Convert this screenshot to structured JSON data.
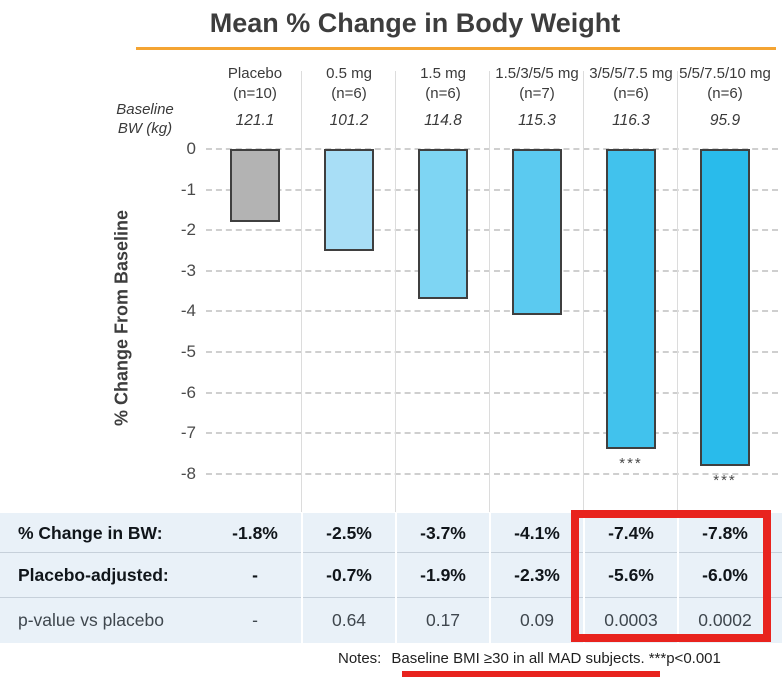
{
  "title": "Mean % Change in Body Weight",
  "accent_colors": {
    "title_rule_orange": "#F4A432",
    "highlight_red": "#E8231E",
    "table_background": "#E9F1F8",
    "bar_border": "#3F3F3F"
  },
  "chart_data": {
    "type": "bar",
    "title": "Mean % Change in Body Weight",
    "ylabel": "% Change From Baseline",
    "ylim": [
      -8,
      0
    ],
    "yticks": [
      0,
      -1,
      -2,
      -3,
      -4,
      -5,
      -6,
      -7,
      -8
    ],
    "grid": "dashed horizontal gridlines, light vertical column separators",
    "baseline_header": {
      "line1": "Baseline",
      "line2": "BW (kg)"
    },
    "columns": [
      {
        "group": "Placebo",
        "n_label": "(n=10)",
        "baseline_bw": "121.1",
        "value": -1.8,
        "color": "#B3B3B3",
        "significance": ""
      },
      {
        "group": "0.5 mg",
        "n_label": "(n=6)",
        "baseline_bw": "101.2",
        "value": -2.5,
        "color": "#A8DEF6",
        "significance": ""
      },
      {
        "group": "1.5 mg",
        "n_label": "(n=6)",
        "baseline_bw": "114.8",
        "value": -3.7,
        "color": "#7ED5F3",
        "significance": ""
      },
      {
        "group": "1.5/3/5/5 mg",
        "n_label": "(n=7)",
        "baseline_bw": "115.3",
        "value": -4.1,
        "color": "#5BCAF0",
        "significance": ""
      },
      {
        "group": "3/5/5/7.5 mg",
        "n_label": "(n=6)",
        "baseline_bw": "116.3",
        "value": -7.4,
        "color": "#41C2ED",
        "significance": "***"
      },
      {
        "group": "5/5/7.5/10 mg",
        "n_label": "(n=6)",
        "baseline_bw": "95.9",
        "value": -7.8,
        "color": "#29BBEB",
        "significance": "***"
      }
    ]
  },
  "table": {
    "rows": [
      {
        "label": "% Change in BW:",
        "values": [
          "-1.8%",
          "-2.5%",
          "-3.7%",
          "-4.1%",
          "-7.4%",
          "-7.8%"
        ],
        "emphasis": true
      },
      {
        "label": "Placebo-adjusted:",
        "values": [
          "-",
          "-0.7%",
          "-1.9%",
          "-2.3%",
          "-5.6%",
          "-6.0%"
        ],
        "emphasis": true
      },
      {
        "label": "p-value vs placebo",
        "values": [
          "-",
          "0.64",
          "0.17",
          "0.09",
          "0.0003",
          "0.0002"
        ],
        "emphasis": false
      }
    ],
    "highlighted_columns": [
      4,
      5
    ]
  },
  "notes": {
    "prefix": "Notes:",
    "underlined_text": "Baseline BMI ≥30 in all MAD subjects.",
    "suffix": "***p<0.001"
  }
}
